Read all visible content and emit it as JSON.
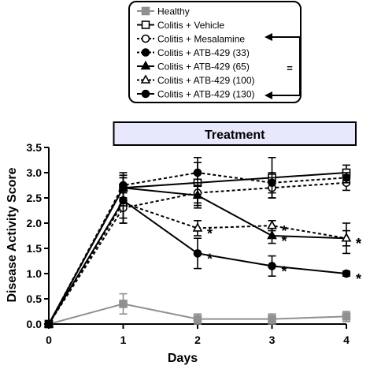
{
  "chart_data": {
    "type": "line",
    "ylabel": "Disease Activity Score",
    "xlabel": "Days",
    "treatment_label": "Treatment",
    "treatment_range": [
      1,
      4
    ],
    "xlim": [
      0,
      4
    ],
    "ylim": [
      0,
      3.5
    ],
    "x_ticks": [
      0,
      1,
      2,
      3,
      4
    ],
    "x_tick_labels": [
      "0",
      "1",
      "2",
      "3",
      "4"
    ],
    "y_ticks": [
      0,
      0.5,
      1,
      1.5,
      2,
      2.5,
      3,
      3.5
    ],
    "y_tick_labels": [
      "0.0",
      "0.5",
      "1.0",
      "1.5",
      "2.0",
      "2.5",
      "3.0",
      "3.5"
    ],
    "legend_placement": "top-center",
    "legend_bracket_symbol": "=",
    "x": [
      0,
      1,
      2,
      3,
      4
    ],
    "series": [
      {
        "name": "Healthy",
        "color": "#909090",
        "marker": "square-filled",
        "dash": "solid",
        "values": [
          0,
          0.4,
          0.1,
          0.1,
          0.15
        ],
        "err": [
          0,
          0.2,
          0.1,
          0.1,
          0.1
        ],
        "star": []
      },
      {
        "name": "Colitis + Vehicle",
        "color": "#000000",
        "marker": "square-open",
        "dash": "solid",
        "values": [
          0,
          2.7,
          2.8,
          2.9,
          3.0
        ],
        "err": [
          0,
          0.2,
          0.5,
          0.4,
          0.15
        ],
        "star": []
      },
      {
        "name": "Colitis + Mesalamine",
        "color": "#000000",
        "marker": "circle-open",
        "dash": "dashed",
        "values": [
          0,
          2.3,
          2.6,
          2.7,
          2.8
        ],
        "err": [
          0,
          0.3,
          0.2,
          0.2,
          0.15
        ],
        "star": []
      },
      {
        "name": "Colitis + ATB-429 (33)",
        "color": "#000000",
        "marker": "circle-filled",
        "dash": "dashed",
        "values": [
          0,
          2.75,
          3.0,
          2.8,
          2.9
        ],
        "err": [
          0,
          0.25,
          0.2,
          0.2,
          0.1
        ],
        "star": []
      },
      {
        "name": "Colitis + ATB-429 (65)",
        "color": "#000000",
        "marker": "triangle-filled",
        "dash": "solid",
        "values": [
          0,
          2.7,
          2.55,
          1.75,
          1.7
        ],
        "err": [
          0,
          0.25,
          0.2,
          0.15,
          0.15
        ],
        "star": [
          3,
          4
        ]
      },
      {
        "name": "Colitis + ATB-429 (100)",
        "color": "#000000",
        "marker": "triangle-open",
        "dash": "dashed",
        "values": [
          0,
          2.4,
          1.9,
          1.95,
          1.7
        ],
        "err": [
          0,
          0.3,
          0.15,
          0.1,
          0.3
        ],
        "star": [
          2,
          3,
          4
        ]
      },
      {
        "name": "Colitis + ATB-429 (130)",
        "color": "#000000",
        "marker": "circle-filled",
        "dash": "solid",
        "values": [
          0,
          2.45,
          1.4,
          1.15,
          1.0
        ],
        "err": [
          0,
          0.45,
          0.3,
          0.2,
          0.05
        ],
        "star": [
          2,
          3,
          4
        ]
      }
    ]
  }
}
